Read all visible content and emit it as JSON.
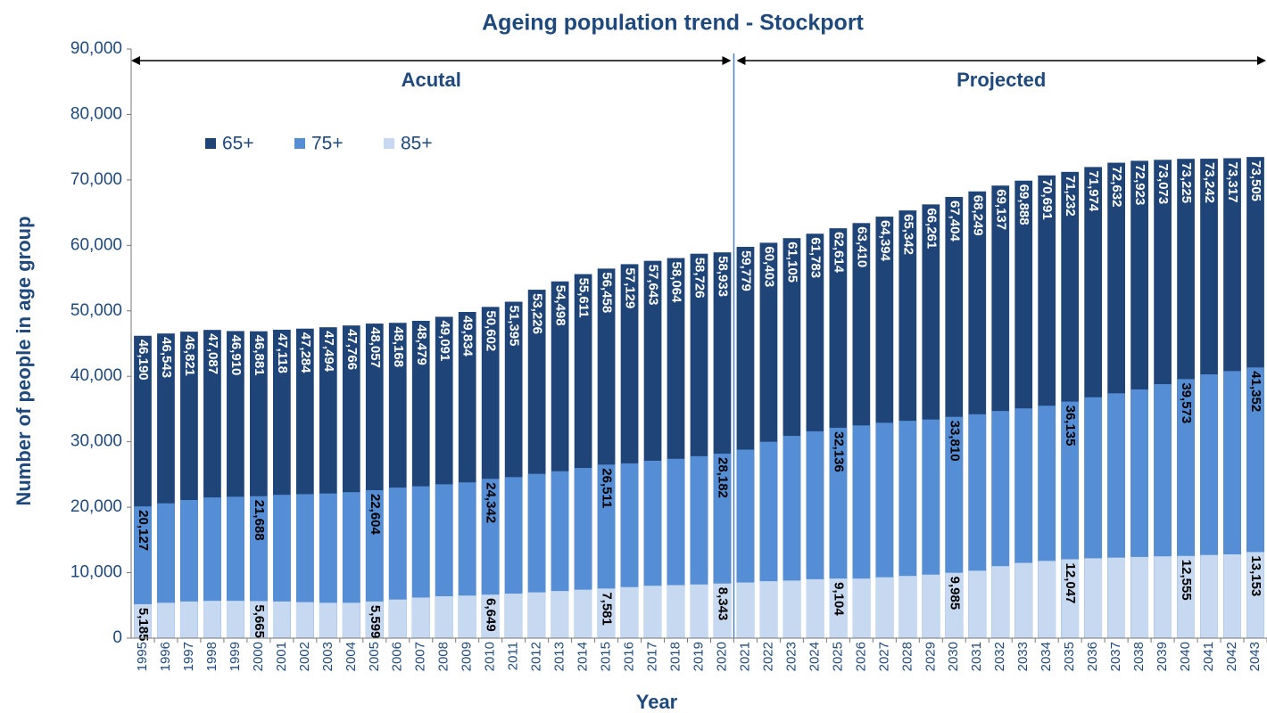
{
  "chart_data": {
    "type": "bar",
    "title": "Ageing population trend - Stockport",
    "x_label": "Year",
    "y_label": "Number of people in age group",
    "annotations": [
      "Acutal",
      "Projected"
    ],
    "categories": [
      "1995",
      "1996",
      "1997",
      "1998",
      "1999",
      "2000",
      "2001",
      "2002",
      "2003",
      "2004",
      "2005",
      "2006",
      "2007",
      "2008",
      "2009",
      "2010",
      "2011",
      "2012",
      "2013",
      "2014",
      "2015",
      "2016",
      "2017",
      "2018",
      "2019",
      "2020",
      "2021",
      "2022",
      "2023",
      "2024",
      "2025",
      "2026",
      "2027",
      "2028",
      "2029",
      "2030",
      "2031",
      "2032",
      "2033",
      "2034",
      "2035",
      "2036",
      "2037",
      "2038",
      "2039",
      "2040",
      "2041",
      "2042",
      "2043"
    ],
    "series": [
      {
        "name": "65+",
        "color": "#1f4478",
        "values": [
          46190,
          46543,
          46821,
          47087,
          46910,
          46881,
          47118,
          47284,
          47494,
          47766,
          48057,
          48168,
          48479,
          49091,
          49834,
          50602,
          51395,
          53226,
          54498,
          55611,
          56458,
          57129,
          57643,
          58064,
          58726,
          58933,
          59779,
          60403,
          61105,
          61783,
          62614,
          63410,
          64394,
          65342,
          66261,
          67404,
          68249,
          69137,
          69888,
          70691,
          71232,
          71974,
          72632,
          72923,
          73073,
          73225,
          73242,
          73317,
          73505
        ],
        "value_labels": [
          "46,190",
          "46,543",
          "46,821",
          "47,087",
          "46,910",
          "46,881",
          "47,118",
          "47,284",
          "47,494",
          "47,766",
          "48,057",
          "48,168",
          "48,479",
          "49,091",
          "49,834",
          "50,602",
          "51,395",
          "53,226",
          "54,498",
          "55,611",
          "56,458",
          "57,129",
          "57,643",
          "58,064",
          "58,726",
          "58,933",
          "59,779",
          "60,403",
          "61,105",
          "61,783",
          "62,614",
          "63,410",
          "64,394",
          "65,342",
          "66,261",
          "67,404",
          "68,249",
          "69,137",
          "69,888",
          "70,691",
          "71,232",
          "71,974",
          "72,632",
          "72,923",
          "73,073",
          "73,225",
          "73,242",
          "73,317",
          "73,505"
        ]
      },
      {
        "name": "75+",
        "color": "#558ed5",
        "values": [
          20127,
          20600,
          21100,
          21500,
          21600,
          21688,
          21900,
          22000,
          22100,
          22300,
          22604,
          23000,
          23200,
          23500,
          23800,
          24342,
          24600,
          25100,
          25500,
          26000,
          26511,
          26700,
          27100,
          27400,
          27800,
          28182,
          28800,
          30000,
          30900,
          31600,
          32136,
          32500,
          32900,
          33200,
          33400,
          33810,
          34200,
          34700,
          35100,
          35500,
          36135,
          36800,
          37400,
          38000,
          38800,
          39573,
          40300,
          40800,
          41352
        ],
        "value_labels": [
          "20,127",
          null,
          null,
          null,
          null,
          "21,688",
          null,
          null,
          null,
          null,
          "22,604",
          null,
          null,
          null,
          null,
          "24,342",
          null,
          null,
          null,
          null,
          "26,511",
          null,
          null,
          null,
          null,
          "28,182",
          null,
          null,
          null,
          null,
          "32,136",
          null,
          null,
          null,
          null,
          "33,810",
          null,
          null,
          null,
          null,
          "36,135",
          null,
          null,
          null,
          null,
          "39,573",
          null,
          null,
          "41,352"
        ]
      },
      {
        "name": "85+",
        "color": "#c6d9f1",
        "values": [
          5185,
          5400,
          5600,
          5700,
          5700,
          5665,
          5600,
          5500,
          5400,
          5400,
          5599,
          5900,
          6200,
          6400,
          6500,
          6649,
          6800,
          7000,
          7200,
          7400,
          7581,
          7800,
          8000,
          8100,
          8200,
          8343,
          8500,
          8700,
          8800,
          9000,
          9104,
          9100,
          9300,
          9500,
          9700,
          9985,
          10300,
          11000,
          11500,
          11800,
          12047,
          12200,
          12300,
          12400,
          12500,
          12555,
          12700,
          12800,
          13153
        ],
        "value_labels": [
          "5,185",
          null,
          null,
          null,
          null,
          "5,665",
          null,
          null,
          null,
          null,
          "5,599",
          null,
          null,
          null,
          null,
          "6,649",
          null,
          null,
          null,
          null,
          "7,581",
          null,
          null,
          null,
          null,
          "8,343",
          null,
          null,
          null,
          null,
          "9,104",
          null,
          null,
          null,
          null,
          "9,985",
          null,
          null,
          null,
          null,
          "12,047",
          null,
          null,
          null,
          null,
          "12,555",
          null,
          null,
          "13,153"
        ]
      }
    ],
    "ylim": [
      0,
      90000
    ],
    "yticks": [
      0,
      {
        "value": 10000,
        "label": "10,000"
      },
      {
        "value": 20000,
        "label": "20,000"
      },
      {
        "value": 30000,
        "label": "30,000"
      },
      {
        "value": 40000,
        "label": "40,000"
      },
      {
        "value": 50000,
        "label": "50,000"
      },
      {
        "value": 60000,
        "label": "60,000"
      },
      {
        "value": 70000,
        "label": "70,000"
      },
      {
        "value": 80000,
        "label": "80,000"
      },
      {
        "value": 90000,
        "label": "90,000"
      }
    ],
    "legend": "upper left"
  }
}
